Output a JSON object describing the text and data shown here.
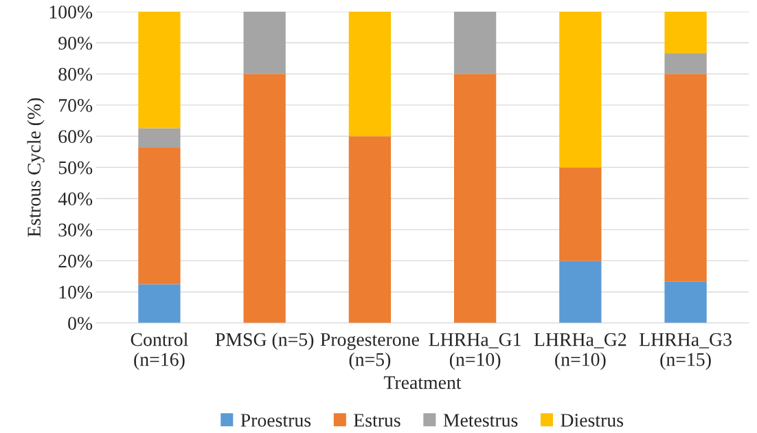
{
  "chart_data": {
    "type": "bar",
    "stacked": true,
    "xlabel": "Treatment",
    "ylabel": "Estrous Cycle (%)",
    "categories": [
      "Control\n(n=16)",
      "PMSG (n=5)",
      "Progesterone\n(n=5)",
      "LHRHa_G1\n(n=10)",
      "LHRHa_G2\n(n=10)",
      "LHRHa_G3\n(n=15)"
    ],
    "series": [
      {
        "name": "Proestrus",
        "color": "#5b9bd5",
        "values": [
          12.5,
          null,
          null,
          null,
          20,
          13.3
        ]
      },
      {
        "name": "Estrus",
        "color": "#ed7d31",
        "values": [
          43.8,
          80,
          60,
          80,
          30,
          66.7
        ]
      },
      {
        "name": "Metestrus",
        "color": "#a5a5a5",
        "values": [
          6.3,
          20,
          null,
          20,
          null,
          6.7
        ]
      },
      {
        "name": "Diestrus",
        "color": "#ffc000",
        "values": [
          37.5,
          null,
          40,
          null,
          50,
          13.3
        ]
      }
    ],
    "ylim": [
      0,
      100
    ],
    "yticks": [
      {
        "value": 0,
        "label": "0%"
      },
      {
        "value": 10,
        "label": "10%"
      },
      {
        "value": 20,
        "label": "20%"
      },
      {
        "value": 30,
        "label": "30%"
      },
      {
        "value": 40,
        "label": "40%"
      },
      {
        "value": 50,
        "label": "50%"
      },
      {
        "value": 60,
        "label": "60%"
      },
      {
        "value": 70,
        "label": "70%"
      },
      {
        "value": 80,
        "label": "80%"
      },
      {
        "value": 90,
        "label": "90%"
      },
      {
        "value": 100,
        "label": "100%"
      }
    ],
    "grid": "y",
    "legend": "bottom"
  }
}
